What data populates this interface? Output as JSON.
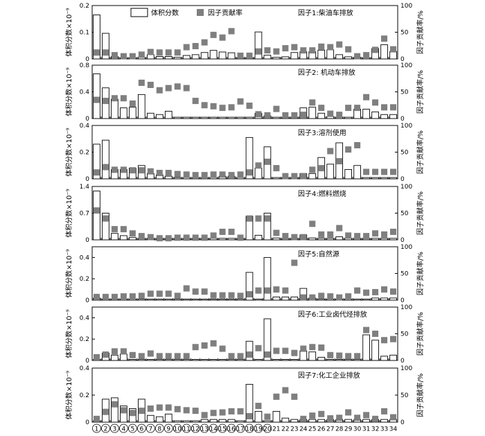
{
  "legend": {
    "volume_label": "体积分数",
    "contribution_label": "因子贡献率"
  },
  "axis_labels": {
    "left": "体积分数×10⁻⁹",
    "right": "因子贡献率/%"
  },
  "x_tick_labels": [
    "①",
    "②",
    "③",
    "④",
    "⑤",
    "⑥",
    "⑦",
    "⑧",
    "⑨",
    "⑩",
    "⑪",
    "⑫",
    "⑬",
    "⑭",
    "⑮",
    "⑯",
    "⑰",
    "⑱",
    "⑲",
    "⑳",
    "21",
    "22",
    "23",
    "24",
    "25",
    "26",
    "27",
    "28",
    "29",
    "30",
    "31",
    "32",
    "33",
    "34"
  ],
  "colors": {
    "volume_bar": "#ffffff",
    "bar_border": "#000000",
    "contribution_marker": "#7f7f7f"
  },
  "chart_data": [
    {
      "type": "bar",
      "title": "因子1:柴油车排放",
      "ylim": [
        0,
        0.2
      ],
      "yticks": [
        "0",
        "0.1",
        "0.2"
      ],
      "y2lim": [
        0,
        100
      ],
      "y2ticks": [
        "0",
        "50",
        "100"
      ],
      "series": [
        {
          "name": "体积分数",
          "values": [
            0.165,
            0.096,
            0.009,
            0.004,
            0.004,
            0.006,
            0.016,
            0.009,
            0.009,
            0.006,
            0.013,
            0.016,
            0.024,
            0.032,
            0.026,
            0.023,
            0.005,
            0.005,
            0.101,
            0.014,
            0.006,
            0.008,
            0.024,
            0.027,
            0.027,
            0.033,
            0.034,
            0.016,
            0.008,
            0.006,
            0.004,
            0.039,
            0.053,
            0.028
          ]
        },
        {
          "name": "因子贡献率",
          "values": [
            12,
            12,
            7,
            5,
            5,
            8,
            13,
            12,
            12,
            12,
            22,
            24,
            31,
            45,
            40,
            52,
            6,
            6,
            14,
            16,
            14,
            20,
            22,
            16,
            16,
            23,
            22,
            27,
            18,
            5,
            7,
            17,
            38,
            18
          ]
        }
      ]
    },
    {
      "type": "bar",
      "title": "因子2: 机动车排放",
      "ylim": [
        0,
        0.8
      ],
      "yticks": [
        "0",
        "0.4",
        "0.8"
      ],
      "y2lim": [
        0,
        100
      ],
      "y2ticks": [
        "0",
        "50",
        "100"
      ],
      "series": [
        {
          "name": "体积分数",
          "values": [
            0.67,
            0.46,
            0.29,
            0.16,
            0.17,
            0.36,
            0.08,
            0.06,
            0.11,
            0.02,
            0.02,
            0.02,
            0.02,
            0.02,
            0.02,
            0.02,
            0.02,
            0.02,
            0.08,
            0.04,
            0.02,
            0.02,
            0.02,
            0.16,
            0.17,
            0.08,
            0.03,
            0.02,
            0.02,
            0.14,
            0.14,
            0.1,
            0.06,
            0.06
          ]
        },
        {
          "name": "因子贡献率",
          "values": [
            35,
            33,
            38,
            38,
            28,
            67,
            63,
            53,
            57,
            60,
            57,
            33,
            25,
            23,
            20,
            21,
            32,
            24,
            8,
            6,
            18,
            6,
            6,
            7,
            30,
            20,
            9,
            7,
            20,
            20,
            40,
            30,
            21,
            21
          ]
        }
      ]
    },
    {
      "type": "bar",
      "title": "因子3:溶剂使用",
      "ylim": [
        0,
        0.4
      ],
      "yticks": [
        "0",
        "0.2",
        "0.4"
      ],
      "y2lim": [
        0,
        100
      ],
      "y2ticks": [
        "0",
        "50",
        "100"
      ],
      "series": [
        {
          "name": "体积分数",
          "values": [
            0.26,
            0.29,
            0.07,
            0.07,
            0.08,
            0.1,
            0.04,
            0.03,
            0.02,
            0.01,
            0.01,
            0.01,
            0.01,
            0.01,
            0.02,
            0.02,
            0.01,
            0.31,
            0.08,
            0.24,
            0.01,
            0.01,
            0.01,
            0.04,
            0.04,
            0.16,
            0.11,
            0.27,
            0.07,
            0.1,
            0.01,
            0.01,
            0.01,
            0.01
          ]
        },
        {
          "name": "因子贡献率",
          "values": [
            12,
            22,
            17,
            17,
            16,
            16,
            14,
            11,
            11,
            9,
            8,
            7,
            7,
            8,
            8,
            7,
            8,
            12,
            25,
            32,
            20,
            5,
            5,
            5,
            17,
            20,
            52,
            33,
            55,
            63,
            13,
            13,
            13,
            13
          ]
        }
      ]
    },
    {
      "type": "bar",
      "title": "因子4:燃料燃烧",
      "ylim": [
        0,
        1.4
      ],
      "yticks": [
        "0",
        "0.7",
        "1.4"
      ],
      "y2lim": [
        0,
        100
      ],
      "y2ticks": [
        "0",
        "50",
        "100"
      ],
      "series": [
        {
          "name": "体积分数",
          "values": [
            1.28,
            0.7,
            0.17,
            0.11,
            0.06,
            0.04,
            0.04,
            0.04,
            0.04,
            0.04,
            0.04,
            0.04,
            0.04,
            0.04,
            0.04,
            0.04,
            0.04,
            0.62,
            0.12,
            0.7,
            0.05,
            0.04,
            0.04,
            0.13,
            0.05,
            0.04,
            0.04,
            0.08,
            0.04,
            0.04,
            0.04,
            0.04,
            0.04,
            0.04
          ]
        },
        {
          "name": "因子贡献率",
          "values": [
            55,
            40,
            20,
            20,
            12,
            7,
            5,
            3,
            3,
            4,
            4,
            4,
            4,
            8,
            15,
            15,
            4,
            40,
            40,
            40,
            13,
            7,
            5,
            5,
            30,
            10,
            10,
            22,
            8,
            7,
            7,
            12,
            10,
            15
          ]
        }
      ]
    },
    {
      "type": "bar",
      "title": "因子5:自然源",
      "ylim": [
        0,
        0.5
      ],
      "yticks": [
        "0",
        "0.2",
        "0.4"
      ],
      "y2lim": [
        0,
        100
      ],
      "y2ticks": [
        "0",
        "50",
        "100"
      ],
      "series": [
        {
          "name": "体积分数",
          "values": [
            0.02,
            0.01,
            0.01,
            0.01,
            0.01,
            0.01,
            0.01,
            0.01,
            0.01,
            0.01,
            0.01,
            0.01,
            0.01,
            0.01,
            0.01,
            0.01,
            0.01,
            0.26,
            0.01,
            0.4,
            0.03,
            0.03,
            0.03,
            0.11,
            0.02,
            0.01,
            0.01,
            0.01,
            0.01,
            0.01,
            0.01,
            0.02,
            0.02,
            0.02
          ]
        },
        {
          "name": "因子贡献率",
          "values": [
            6,
            6,
            6,
            7,
            7,
            8,
            12,
            12,
            12,
            8,
            22,
            16,
            16,
            9,
            9,
            9,
            8,
            11,
            18,
            18,
            20,
            18,
            70,
            5,
            5,
            8,
            7,
            5,
            7,
            18,
            14,
            15,
            20,
            16
          ]
        }
      ]
    },
    {
      "type": "bar",
      "title": "因子6:工业卤代烃排放",
      "ylim": [
        0,
        0.5
      ],
      "yticks": [
        "0",
        "0.2",
        "0.4"
      ],
      "y2lim": [
        0,
        100
      ],
      "y2ticks": [
        "0",
        "50",
        "100"
      ],
      "series": [
        {
          "name": "体积分数",
          "values": [
            0.01,
            0.07,
            0.05,
            0.06,
            0.01,
            0.01,
            0.01,
            0.01,
            0.01,
            0.01,
            0.01,
            0.01,
            0.01,
            0.01,
            0.01,
            0.01,
            0.01,
            0.18,
            0.01,
            0.39,
            0.01,
            0.01,
            0.01,
            0.09,
            0.08,
            0.03,
            0.01,
            0.01,
            0.01,
            0.01,
            0.24,
            0.19,
            0.04,
            0.05
          ]
        },
        {
          "name": "因子贡献率",
          "values": [
            6,
            11,
            17,
            17,
            10,
            8,
            13,
            8,
            8,
            8,
            8,
            25,
            28,
            32,
            22,
            8,
            8,
            11,
            23,
            11,
            18,
            18,
            14,
            22,
            25,
            24,
            10,
            9,
            8,
            8,
            57,
            50,
            38,
            40
          ]
        }
      ]
    },
    {
      "type": "bar",
      "title": "因子7:化工企业排放",
      "ylim": [
        0,
        0.4
      ],
      "yticks": [
        "0",
        "0.2",
        "0.4"
      ],
      "y2lim": [
        0,
        100
      ],
      "y2ticks": [
        "0",
        "50",
        "100"
      ],
      "series": [
        {
          "name": "体积分数",
          "values": [
            0.01,
            0.17,
            0.18,
            0.12,
            0.1,
            0.17,
            0.05,
            0.04,
            0.06,
            0.01,
            0.01,
            0.01,
            0.02,
            0.02,
            0.02,
            0.02,
            0.01,
            0.28,
            0.08,
            0.01,
            0.08,
            0.03,
            0.02,
            0.02,
            0.02,
            0.02,
            0.02,
            0.02,
            0.02,
            0.02,
            0.02,
            0.02,
            0.02,
            0.02
          ]
        },
        {
          "name": "因子贡献率",
          "values": [
            6,
            19,
            33,
            22,
            17,
            21,
            25,
            27,
            27,
            24,
            22,
            21,
            13,
            17,
            18,
            20,
            20,
            11,
            30,
            10,
            47,
            59,
            47,
            6,
            12,
            15,
            7,
            8,
            18,
            8,
            13,
            6,
            20,
            9
          ]
        }
      ]
    }
  ]
}
